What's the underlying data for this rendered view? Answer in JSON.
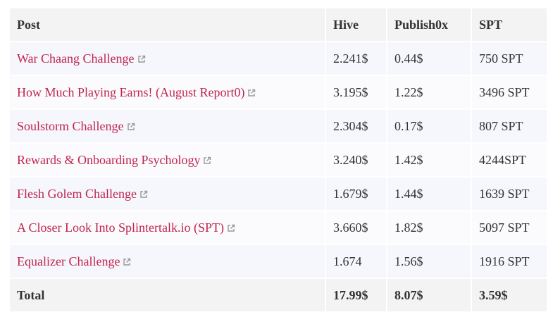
{
  "table": {
    "header": [
      "Post",
      "Hive",
      "Publish0x",
      "SPT"
    ],
    "rows": [
      [
        "War Chaang Challenge",
        "2.241$",
        "0.44$",
        "750 SPT"
      ],
      [
        "How Much Playing Earns! (August Report0)",
        "3.195$",
        "1.22$",
        "3496 SPT"
      ],
      [
        "Soulstorm Challenge",
        "2.304$",
        "0.17$",
        "807 SPT"
      ],
      [
        "Rewards & Onboarding Psychology",
        "3.240$",
        "1.42$",
        "4244SPT"
      ],
      [
        "Flesh Golem Challenge",
        "1.679$",
        "1.44$",
        "1639 SPT"
      ],
      [
        "A Closer Look Into Splintertalk.io (SPT)",
        "3.660$",
        "1.82$",
        "5097 SPT"
      ],
      [
        "Equalizer Challenge",
        "1.674",
        "1.56$",
        "1916 SPT"
      ]
    ],
    "total": [
      "Total",
      "17.99$",
      "8.07$",
      "3.59$"
    ]
  }
}
